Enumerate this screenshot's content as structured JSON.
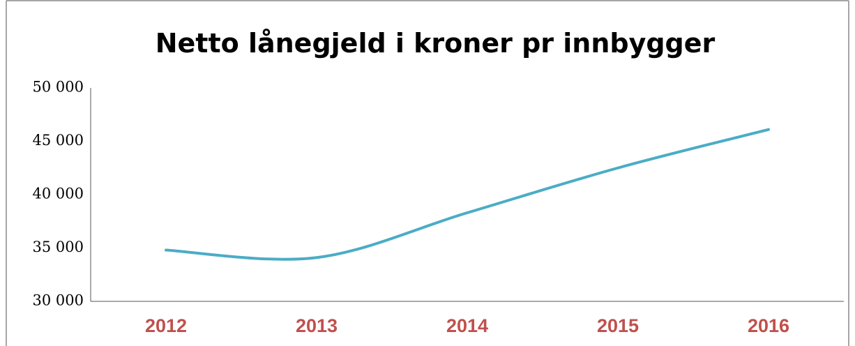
{
  "chart_data": {
    "type": "line",
    "title": "Netto lånegjeld i kroner pr innbygger",
    "categories": [
      "2012",
      "2013",
      "2014",
      "2015",
      "2016"
    ],
    "series": [
      {
        "name": "Netto lånegjeld",
        "color": "#4bacc6",
        "values": [
          34800,
          34100,
          38300,
          42500,
          46100
        ]
      }
    ],
    "ylim": [
      30000,
      50000
    ],
    "yticks": [
      {
        "value": 30000,
        "label": "30 000"
      },
      {
        "value": 35000,
        "label": "35 000"
      },
      {
        "value": 40000,
        "label": "40 000"
      },
      {
        "value": 45000,
        "label": "45 000"
      },
      {
        "value": 50000,
        "label": "50 000"
      }
    ],
    "smooth": true,
    "grid": false,
    "xlabel_color": "#c0504d"
  }
}
